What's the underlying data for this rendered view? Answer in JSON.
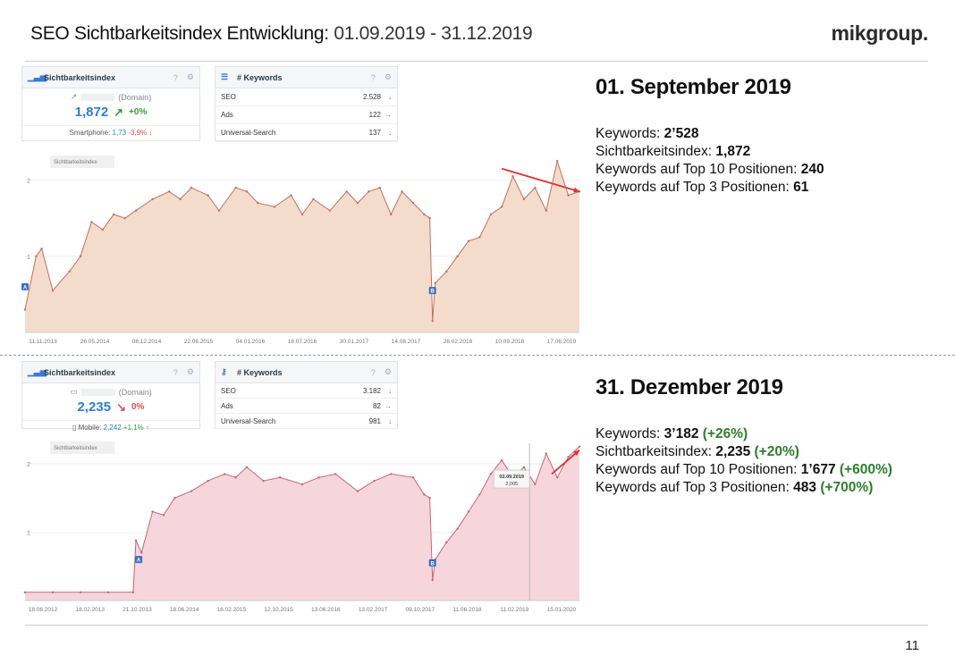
{
  "header": {
    "title_main": "SEO Sichtbarkeitsindex Entwicklung:",
    "title_range": " 01.09.2019 - 31.12.2019",
    "brand": "mikgroup.",
    "page_number": "11"
  },
  "colors": {
    "top_area_fill": "#f4dccd",
    "top_line": "#c0705a",
    "bottom_area_fill": "#f6d6dc",
    "bottom_line": "#c56676",
    "trend_arrow": "#e03030",
    "gain_green": "#2e7d2e",
    "index_blue": "#2f7fd1"
  },
  "snapshot_1": {
    "vis_widget": {
      "title": "Sichtbarkeitsindex",
      "domain_label": "(Domain)",
      "value": "1,872",
      "arrow_icon": "↗",
      "change": "+0%",
      "sub_label": "Smartphone: ",
      "sub_value": "1,73",
      "sub_change": "-3,9%",
      "sub_arrow": "↓"
    },
    "kw_widget": {
      "title": "# Keywords",
      "rows": [
        {
          "label": "SEO",
          "value": "2.528",
          "arrow": "↓"
        },
        {
          "label": "Ads",
          "value": "122",
          "arrow": "→"
        },
        {
          "label": "Universal-Search",
          "value": "137",
          "arrow": "↓"
        }
      ]
    },
    "heading": "01. September 2019",
    "stats": [
      {
        "label": "Keywords: ",
        "value": "2’528"
      },
      {
        "label": "Sichtbarkeitsindex: ",
        "value": "1,872"
      },
      {
        "label": "Keywords auf Top 10 Positionen: ",
        "value": "240"
      },
      {
        "label": "Keywords auf Top 3 Positionen: ",
        "value": "61"
      }
    ]
  },
  "snapshot_2": {
    "vis_widget": {
      "title": "Sichtbarkeitsindex",
      "domain_label": "(Domain)",
      "value": "2,235",
      "arrow_icon": "↘",
      "change": "0%",
      "sub_label": "Mobile: ",
      "sub_value": "2,242",
      "sub_change": "+1,1%",
      "sub_arrow": "↑"
    },
    "kw_widget": {
      "title": "# Keywords",
      "rows": [
        {
          "label": "SEO",
          "value": "3.182",
          "arrow": "↓"
        },
        {
          "label": "Ads",
          "value": "82",
          "arrow": "→"
        },
        {
          "label": "Universal-Search",
          "value": "981",
          "arrow": "↓"
        }
      ]
    },
    "heading": "31. Dezember 2019",
    "stats": [
      {
        "label": "Keywords: ",
        "value": "3’182",
        "gain": "(+26%)"
      },
      {
        "label": "Sichtbarkeitsindex: ",
        "value": "2,235",
        "gain": "(+20%)"
      },
      {
        "label": "Keywords auf Top 10 Positionen: ",
        "value": "1’677",
        "gain": "(+600%)"
      },
      {
        "label": "Keywords auf Top 3 Positionen: ",
        "value": "483",
        "gain": "(+700%)"
      }
    ]
  },
  "chart_data": [
    {
      "type": "area",
      "title": "Sichtbarkeitsindex",
      "xlabel": "",
      "ylabel": "",
      "ylim": [
        0,
        2.3
      ],
      "yticks": [
        1,
        2
      ],
      "xticks": [
        "11.11.2013",
        "26.05.2014",
        "08.12.2014",
        "22.06.2015",
        "04.01.2016",
        "18.07.2016",
        "30.01.2017",
        "14.08.2017",
        "26.02.2018",
        "10.09.2018",
        "17.06.2019"
      ],
      "markers": [
        {
          "label": "A",
          "x": 0.0,
          "y": 0.6
        },
        {
          "label": "B",
          "x": 0.735,
          "y": 0.55
        }
      ],
      "series": [
        {
          "x": [
            0,
            0.02,
            0.03,
            0.05,
            0.08,
            0.1,
            0.12,
            0.14,
            0.16,
            0.18,
            0.2,
            0.23,
            0.26,
            0.28,
            0.3,
            0.33,
            0.35,
            0.38,
            0.4,
            0.42,
            0.45,
            0.48,
            0.5,
            0.52,
            0.55,
            0.58,
            0.6,
            0.62,
            0.64,
            0.66,
            0.68,
            0.7,
            0.72,
            0.73,
            0.735,
            0.74,
            0.76,
            0.78,
            0.8,
            0.82,
            0.84,
            0.86,
            0.88,
            0.9,
            0.92,
            0.94,
            0.96,
            0.98,
            1.0
          ],
          "y": [
            0.3,
            1.0,
            1.1,
            0.55,
            0.8,
            1.0,
            1.45,
            1.35,
            1.55,
            1.5,
            1.6,
            1.75,
            1.85,
            1.75,
            1.9,
            1.8,
            1.6,
            1.9,
            1.85,
            1.7,
            1.65,
            1.8,
            1.55,
            1.75,
            1.6,
            1.85,
            1.7,
            1.85,
            1.9,
            1.55,
            1.85,
            1.7,
            1.55,
            1.5,
            0.15,
            0.65,
            0.8,
            1.0,
            1.2,
            1.25,
            1.55,
            1.65,
            2.05,
            1.75,
            1.9,
            1.6,
            2.25,
            1.8,
            1.85
          ]
        }
      ]
    },
    {
      "type": "area",
      "title": "Sichtbarkeitsindex",
      "xlabel": "",
      "ylabel": "",
      "ylim": [
        0,
        2.3
      ],
      "yticks": [
        1,
        2
      ],
      "xticks": [
        "18.06.2012",
        "18.02.2013",
        "21.10.2013",
        "18.06.2014",
        "16.02.2015",
        "12.10.2015",
        "13.06.2016",
        "13.02.2017",
        "09.10.2017",
        "11.06.2018",
        "11.02.2019",
        "15.01.2020"
      ],
      "markers": [
        {
          "label": "A",
          "x": 0.205,
          "y": 0.6
        },
        {
          "label": "B",
          "x": 0.735,
          "y": 0.55
        }
      ],
      "tooltip": {
        "date": "02.09.2019",
        "value": "2,005"
      },
      "series": [
        {
          "x": [
            0,
            0.05,
            0.1,
            0.15,
            0.195,
            0.2,
            0.21,
            0.23,
            0.25,
            0.27,
            0.3,
            0.33,
            0.36,
            0.38,
            0.4,
            0.43,
            0.46,
            0.5,
            0.53,
            0.56,
            0.6,
            0.63,
            0.66,
            0.7,
            0.72,
            0.73,
            0.735,
            0.74,
            0.76,
            0.78,
            0.8,
            0.82,
            0.84,
            0.86,
            0.88,
            0.9,
            0.92,
            0.94,
            0.96,
            0.98,
            1.0
          ],
          "y": [
            0.12,
            0.12,
            0.12,
            0.12,
            0.12,
            0.88,
            0.7,
            1.3,
            1.25,
            1.5,
            1.6,
            1.75,
            1.85,
            1.8,
            1.95,
            1.75,
            1.8,
            1.7,
            1.8,
            1.85,
            1.6,
            1.75,
            1.85,
            1.8,
            1.55,
            1.5,
            0.3,
            0.6,
            0.85,
            1.05,
            1.3,
            1.55,
            1.85,
            2.05,
            1.8,
            1.95,
            1.7,
            2.15,
            1.8,
            2.1,
            2.25
          ]
        }
      ]
    }
  ]
}
